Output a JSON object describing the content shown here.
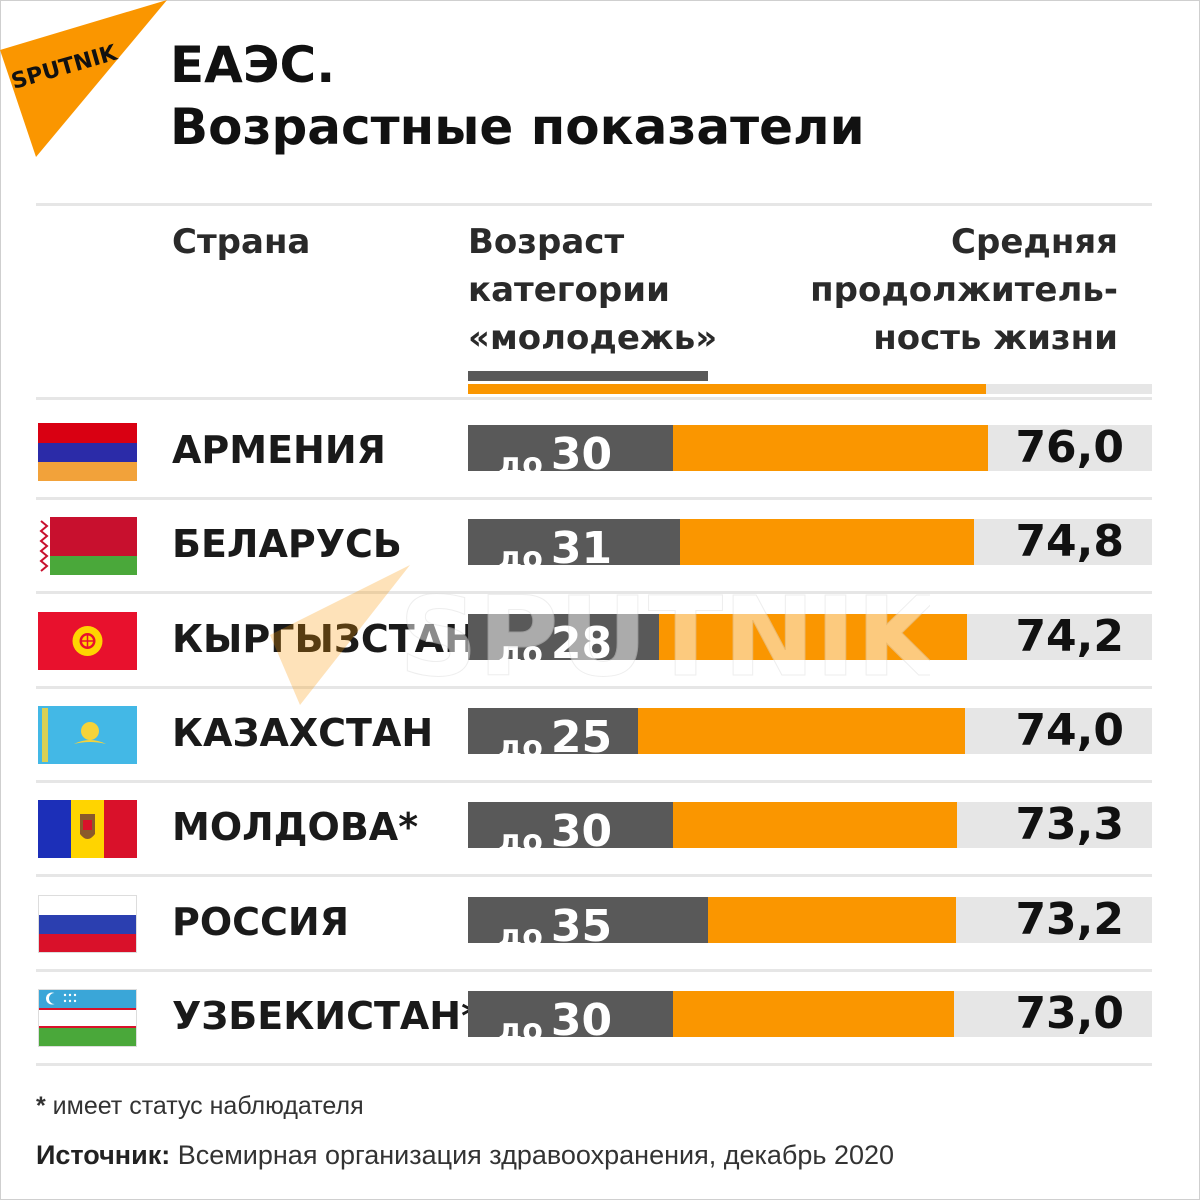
{
  "brand": {
    "name": "SPUTNIK",
    "color": "#fa9600"
  },
  "title": {
    "line1": "ЕАЭС.",
    "line2": "Возрастные показатели"
  },
  "headers": {
    "country": "Страна",
    "youth": [
      "Возраст",
      "категории",
      "«молодежь»"
    ],
    "life": [
      "Средняя",
      "продолжитель-",
      "ность жизни"
    ]
  },
  "colors": {
    "youth_bar": "#595959",
    "life_bar": "#fa9600",
    "track": "#e6e6e6"
  },
  "chart_data": {
    "type": "bar",
    "categories": [
      "АРМЕНИЯ",
      "БЕЛАРУСЬ",
      "КЫРГЫЗСТАН",
      "КАЗАХСТАН",
      "МОЛДОВА*",
      "РОССИЯ",
      "УЗБЕКИСТАН*"
    ],
    "series": [
      {
        "name": "Возраст категории «молодежь»",
        "prefix": "до",
        "values": [
          30,
          31,
          28,
          25,
          30,
          35,
          30
        ]
      },
      {
        "name": "Средняя продолжительность жизни",
        "values": [
          76.0,
          74.8,
          74.2,
          74.0,
          73.3,
          73.2,
          73.0
        ],
        "labels": [
          "76,0",
          "74,8",
          "74,2",
          "74,0",
          "73,3",
          "73,2",
          "73,0"
        ]
      }
    ],
    "flags": [
      "armenia-flag",
      "belarus-flag",
      "kyrgyzstan-flag",
      "kazakhstan-flag",
      "moldova-flag",
      "russia-flag",
      "uzbekistan-flag"
    ]
  },
  "footnote": {
    "mark": "*",
    "text": " имеет статус наблюдателя"
  },
  "source": {
    "label": "Источник:",
    "text": " Всемирная организация здравоохранения, декабрь 2020"
  }
}
